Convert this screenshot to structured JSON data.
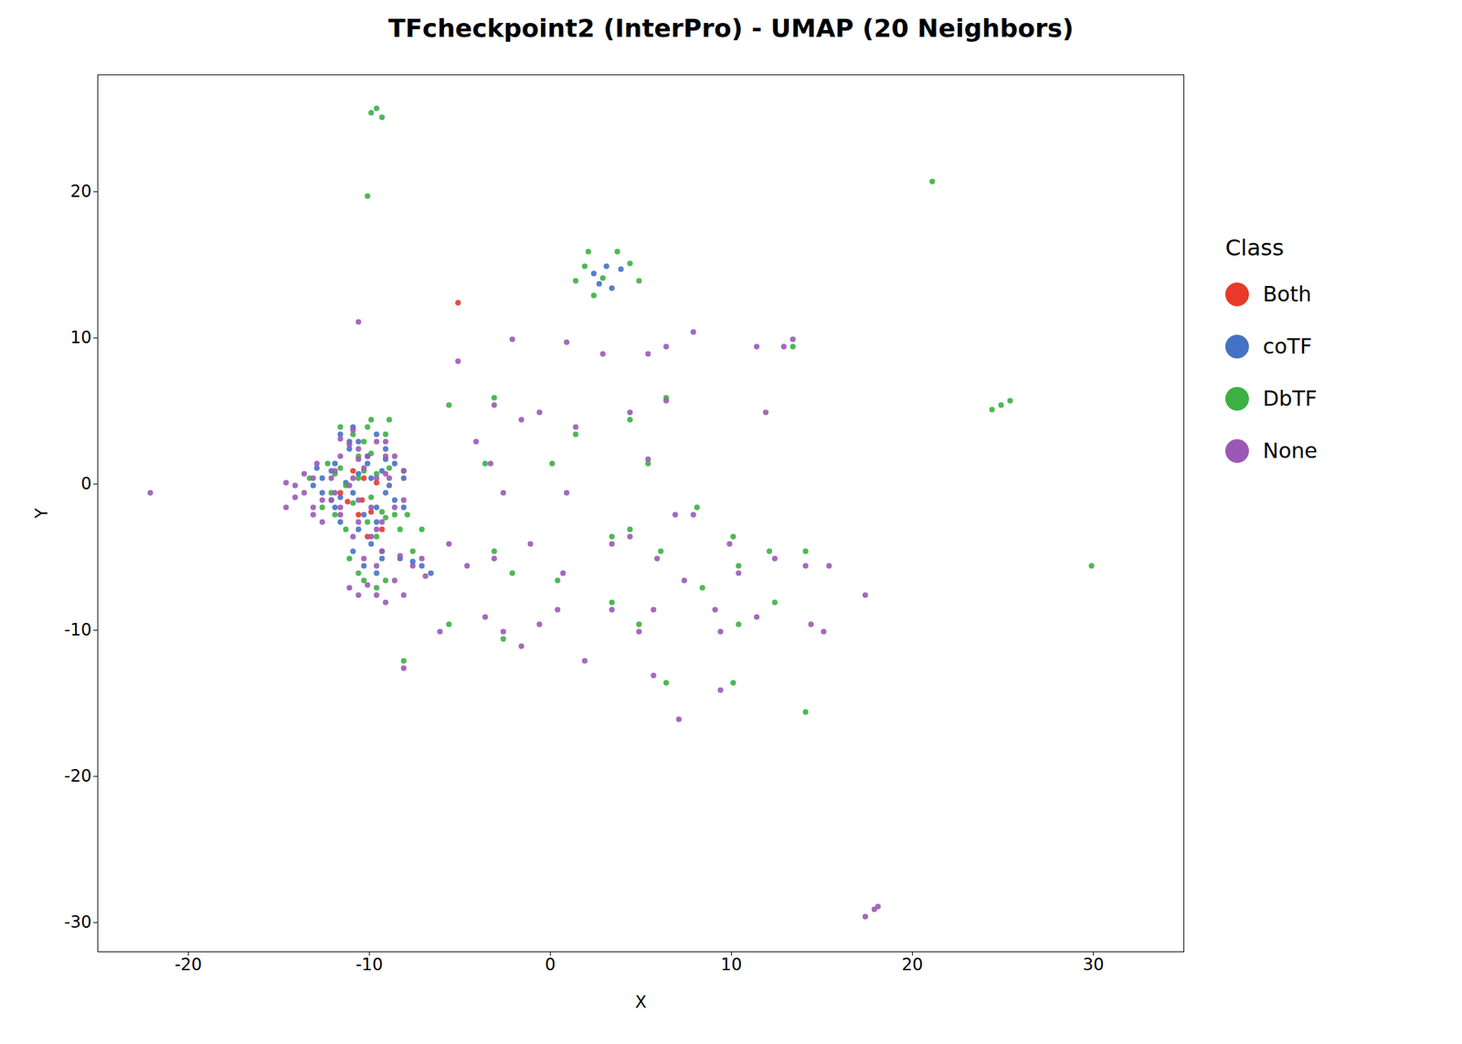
{
  "chart_data": {
    "type": "scatter",
    "title": "TFcheckpoint2 (InterPro) - UMAP (20 Neighbors)",
    "xlabel": "X",
    "ylabel": "Y",
    "xlim": [
      -25,
      35
    ],
    "ylim": [
      -32,
      28
    ],
    "xticks": [
      -20,
      -10,
      0,
      10,
      20,
      30
    ],
    "yticks": [
      -30,
      -20,
      -10,
      0,
      10,
      20
    ],
    "grid": false,
    "legend": "right",
    "legend_title": "Class",
    "series": [
      {
        "name": "Both",
        "color": "#e8392a",
        "values": [
          [
            -11.2,
            -1.2
          ],
          [
            -10.6,
            -2.1
          ],
          [
            -9.9,
            -1.9
          ],
          [
            -10.3,
            0.4
          ],
          [
            -9.6,
            0.1
          ],
          [
            -11.6,
            -0.6
          ],
          [
            -10.9,
            0.9
          ],
          [
            -10.1,
            -3.6
          ],
          [
            -9.3,
            -3.1
          ],
          [
            -10.4,
            -1.1
          ],
          [
            -5.1,
            12.4
          ]
        ]
      },
      {
        "name": "coTF",
        "color": "#4472c4",
        "values": [
          [
            -12.1,
            -1.1
          ],
          [
            -11.6,
            -0.9
          ],
          [
            -11.3,
            0.1
          ],
          [
            -10.9,
            -0.6
          ],
          [
            -10.6,
            0.7
          ],
          [
            -10.3,
            -2.1
          ],
          [
            -9.9,
            0.4
          ],
          [
            -9.6,
            -1.6
          ],
          [
            -9.3,
            0.9
          ],
          [
            -11.9,
            1.4
          ],
          [
            -10.1,
            1.9
          ],
          [
            -9.1,
            -0.6
          ],
          [
            -12.6,
            0.4
          ],
          [
            -11.1,
            2.4
          ],
          [
            -10.6,
            -3.1
          ],
          [
            -9.6,
            -2.6
          ],
          [
            -8.9,
            -0.1
          ],
          [
            -11.6,
            -2.6
          ],
          [
            -12.1,
            0.9
          ],
          [
            -10.1,
            1.4
          ],
          [
            -9.1,
            1.7
          ],
          [
            -8.6,
            -1.1
          ],
          [
            -11.9,
            -1.6
          ],
          [
            -10.6,
            2.9
          ],
          [
            -9.9,
            -4.1
          ],
          [
            -10.9,
            -4.6
          ],
          [
            -9.6,
            3.4
          ],
          [
            -8.1,
            -1.6
          ],
          [
            -11.1,
            2.9
          ],
          [
            -9.3,
            -5.1
          ],
          [
            -12.6,
            -0.6
          ],
          [
            -13.1,
            -0.1
          ],
          [
            -10.3,
            -5.6
          ],
          [
            -9.1,
            2.4
          ],
          [
            -8.6,
            1.4
          ],
          [
            -11.6,
            3.4
          ],
          [
            -12.9,
            1.1
          ],
          [
            -10.9,
            3.9
          ],
          [
            -9.6,
            -6.1
          ],
          [
            -8.1,
            0.4
          ],
          [
            2.4,
            14.4
          ],
          [
            3.1,
            14.9
          ],
          [
            3.9,
            14.7
          ],
          [
            3.4,
            13.4
          ],
          [
            2.7,
            13.7
          ],
          [
            -7.1,
            -5.6
          ],
          [
            -7.6,
            -5.3
          ],
          [
            -8.3,
            -5.1
          ],
          [
            -6.6,
            -6.1
          ]
        ]
      },
      {
        "name": "DbTF",
        "color": "#3cb043",
        "values": [
          [
            -11.3,
            -0.1
          ],
          [
            -10.9,
            -1.3
          ],
          [
            -10.6,
            0.4
          ],
          [
            -10.3,
            0.9
          ],
          [
            -9.9,
            -0.9
          ],
          [
            -11.6,
            1.1
          ],
          [
            -9.6,
            0.7
          ],
          [
            -10.1,
            -2.6
          ],
          [
            -9.3,
            -1.9
          ],
          [
            -12.1,
            -0.6
          ],
          [
            -11.9,
            0.7
          ],
          [
            -10.6,
            1.9
          ],
          [
            -9.9,
            2.1
          ],
          [
            -9.1,
            -2.3
          ],
          [
            -8.9,
            1.1
          ],
          [
            -11.3,
            -3.1
          ],
          [
            -10.3,
            2.9
          ],
          [
            -9.6,
            -3.6
          ],
          [
            -12.3,
            1.4
          ],
          [
            -10.9,
            3.4
          ],
          [
            -9.3,
            -4.6
          ],
          [
            -11.6,
            3.9
          ],
          [
            -10.1,
            3.9
          ],
          [
            -8.6,
            -2.1
          ],
          [
            -11.9,
            -2.1
          ],
          [
            -9.9,
            4.4
          ],
          [
            -8.1,
            0.9
          ],
          [
            -12.6,
            -1.6
          ],
          [
            -10.6,
            -6.1
          ],
          [
            -9.1,
            3.4
          ],
          [
            -8.3,
            -3.1
          ],
          [
            -11.1,
            -5.1
          ],
          [
            -7.6,
            -4.6
          ],
          [
            -13.3,
            0.4
          ],
          [
            -9.6,
            -7.1
          ],
          [
            -8.9,
            4.4
          ],
          [
            -7.9,
            -2.1
          ],
          [
            -10.3,
            -6.6
          ],
          [
            -9.1,
            -6.6
          ],
          [
            -7.1,
            -3.1
          ],
          [
            1.9,
            14.9
          ],
          [
            2.9,
            14.1
          ],
          [
            4.4,
            15.1
          ],
          [
            2.4,
            12.9
          ],
          [
            1.4,
            13.9
          ],
          [
            4.9,
            13.9
          ],
          [
            3.7,
            15.9
          ],
          [
            2.1,
            15.9
          ],
          [
            -9.6,
            25.7
          ],
          [
            -9.9,
            25.4
          ],
          [
            -9.3,
            25.1
          ],
          [
            -10.1,
            19.7
          ],
          [
            21.1,
            20.7
          ],
          [
            24.9,
            5.4
          ],
          [
            24.4,
            5.1
          ],
          [
            25.4,
            5.7
          ],
          [
            29.9,
            -5.6
          ],
          [
            -5.6,
            5.4
          ],
          [
            -3.1,
            5.9
          ],
          [
            0.1,
            1.4
          ],
          [
            -2.1,
            -6.1
          ],
          [
            4.9,
            -9.6
          ],
          [
            -2.6,
            -10.6
          ],
          [
            -5.6,
            -9.6
          ],
          [
            8.4,
            -7.1
          ],
          [
            10.4,
            -9.6
          ],
          [
            12.4,
            -8.1
          ],
          [
            6.4,
            -13.6
          ],
          [
            10.1,
            -13.6
          ],
          [
            -8.1,
            -12.1
          ],
          [
            14.1,
            -15.6
          ],
          [
            0.4,
            -6.6
          ],
          [
            4.4,
            -3.1
          ],
          [
            -3.6,
            1.4
          ],
          [
            1.4,
            3.4
          ],
          [
            3.4,
            -3.6
          ],
          [
            6.4,
            5.9
          ],
          [
            5.4,
            1.4
          ],
          [
            -3.1,
            -4.6
          ],
          [
            6.1,
            -4.6
          ],
          [
            10.1,
            -3.6
          ],
          [
            12.1,
            -4.6
          ],
          [
            14.1,
            -4.6
          ],
          [
            10.4,
            -5.6
          ],
          [
            3.4,
            -8.1
          ],
          [
            8.1,
            -1.6
          ],
          [
            4.4,
            4.4
          ],
          [
            13.4,
            9.4
          ]
        ]
      },
      {
        "name": "None",
        "color": "#9b59b6",
        "values": [
          [
            -11.6,
            -1.6
          ],
          [
            -11.1,
            -0.1
          ],
          [
            -10.9,
            0.4
          ],
          [
            -10.6,
            -1.1
          ],
          [
            -10.3,
            1.1
          ],
          [
            -9.9,
            -1.6
          ],
          [
            -9.6,
            0.4
          ],
          [
            -9.3,
            -2.6
          ],
          [
            -11.9,
            0.9
          ],
          [
            -10.6,
            1.7
          ],
          [
            -9.1,
            0.7
          ],
          [
            -12.1,
            0.4
          ],
          [
            -11.6,
            1.9
          ],
          [
            -10.6,
            -2.6
          ],
          [
            -9.6,
            -3.1
          ],
          [
            -8.9,
            0.4
          ],
          [
            -11.6,
            -2.1
          ],
          [
            -12.1,
            -1.1
          ],
          [
            -10.1,
            1.9
          ],
          [
            -9.1,
            1.9
          ],
          [
            -8.6,
            -1.6
          ],
          [
            -11.9,
            -0.6
          ],
          [
            -10.6,
            2.4
          ],
          [
            -9.9,
            -3.6
          ],
          [
            -10.9,
            -3.6
          ],
          [
            -9.6,
            2.9
          ],
          [
            -8.1,
            -1.1
          ],
          [
            -11.1,
            2.7
          ],
          [
            -9.3,
            -4.6
          ],
          [
            -12.6,
            -1.1
          ],
          [
            -13.1,
            0.4
          ],
          [
            -10.3,
            -5.1
          ],
          [
            -9.1,
            2.9
          ],
          [
            -8.6,
            1.9
          ],
          [
            -11.6,
            3.1
          ],
          [
            -12.9,
            1.4
          ],
          [
            -10.9,
            3.7
          ],
          [
            -9.6,
            -5.6
          ],
          [
            -8.1,
            0.9
          ],
          [
            -13.6,
            -0.6
          ],
          [
            -14.1,
            -0.1
          ],
          [
            -13.6,
            0.7
          ],
          [
            -14.6,
            0.1
          ],
          [
            -14.1,
            -0.9
          ],
          [
            -13.1,
            -1.6
          ],
          [
            -12.6,
            -2.6
          ],
          [
            -13.1,
            -2.1
          ],
          [
            -14.6,
            -1.6
          ],
          [
            -7.6,
            -5.6
          ],
          [
            -8.3,
            -4.9
          ],
          [
            -6.9,
            -6.3
          ],
          [
            -7.1,
            -5.1
          ],
          [
            -11.1,
            -7.1
          ],
          [
            -10.6,
            -7.6
          ],
          [
            -10.1,
            -6.9
          ],
          [
            -9.6,
            -7.6
          ],
          [
            -8.6,
            -6.6
          ],
          [
            -9.1,
            -8.1
          ],
          [
            -8.1,
            -7.6
          ],
          [
            -5.1,
            8.4
          ],
          [
            -10.6,
            11.1
          ],
          [
            -3.1,
            5.4
          ],
          [
            0.9,
            -0.6
          ],
          [
            0.4,
            -8.6
          ],
          [
            -3.6,
            -9.1
          ],
          [
            4.9,
            -10.1
          ],
          [
            -1.6,
            -11.1
          ],
          [
            1.9,
            -12.1
          ],
          [
            -6.1,
            -10.1
          ],
          [
            7.4,
            -6.6
          ],
          [
            5.7,
            -8.6
          ],
          [
            9.4,
            -10.1
          ],
          [
            11.4,
            -9.1
          ],
          [
            5.7,
            -13.1
          ],
          [
            9.4,
            -14.1
          ],
          [
            -8.1,
            -12.6
          ],
          [
            7.1,
            -16.1
          ],
          [
            -2.6,
            -10.1
          ],
          [
            0.7,
            -6.1
          ],
          [
            4.4,
            -3.6
          ],
          [
            -3.3,
            1.4
          ],
          [
            -2.1,
            9.9
          ],
          [
            1.4,
            3.9
          ],
          [
            6.9,
            -2.1
          ],
          [
            3.4,
            -4.1
          ],
          [
            -1.1,
            -4.1
          ],
          [
            7.9,
            10.4
          ],
          [
            6.4,
            5.7
          ],
          [
            5.4,
            1.7
          ],
          [
            0.9,
            9.7
          ],
          [
            -3.1,
            -5.1
          ],
          [
            5.9,
            -5.1
          ],
          [
            9.9,
            -4.1
          ],
          [
            12.4,
            -5.1
          ],
          [
            14.1,
            -5.6
          ],
          [
            15.1,
            -10.1
          ],
          [
            10.4,
            -6.1
          ],
          [
            -1.6,
            4.4
          ],
          [
            3.4,
            -8.6
          ],
          [
            7.9,
            -2.1
          ],
          [
            4.4,
            4.9
          ],
          [
            13.4,
            9.9
          ],
          [
            -5.6,
            -4.1
          ],
          [
            12.9,
            9.4
          ],
          [
            5.4,
            8.9
          ],
          [
            11.4,
            9.4
          ],
          [
            -0.6,
            -9.6
          ],
          [
            9.1,
            -8.6
          ],
          [
            -0.6,
            4.9
          ],
          [
            -4.6,
            -5.6
          ],
          [
            14.4,
            -9.6
          ],
          [
            2.9,
            8.9
          ],
          [
            -4.1,
            2.9
          ],
          [
            6.4,
            9.4
          ],
          [
            11.9,
            4.9
          ],
          [
            -2.6,
            -0.6
          ],
          [
            15.4,
            -5.6
          ],
          [
            17.4,
            -7.6
          ],
          [
            17.4,
            -29.6
          ],
          [
            17.9,
            -29.1
          ],
          [
            18.1,
            -28.9
          ],
          [
            -22.1,
            -0.6
          ]
        ]
      }
    ]
  }
}
